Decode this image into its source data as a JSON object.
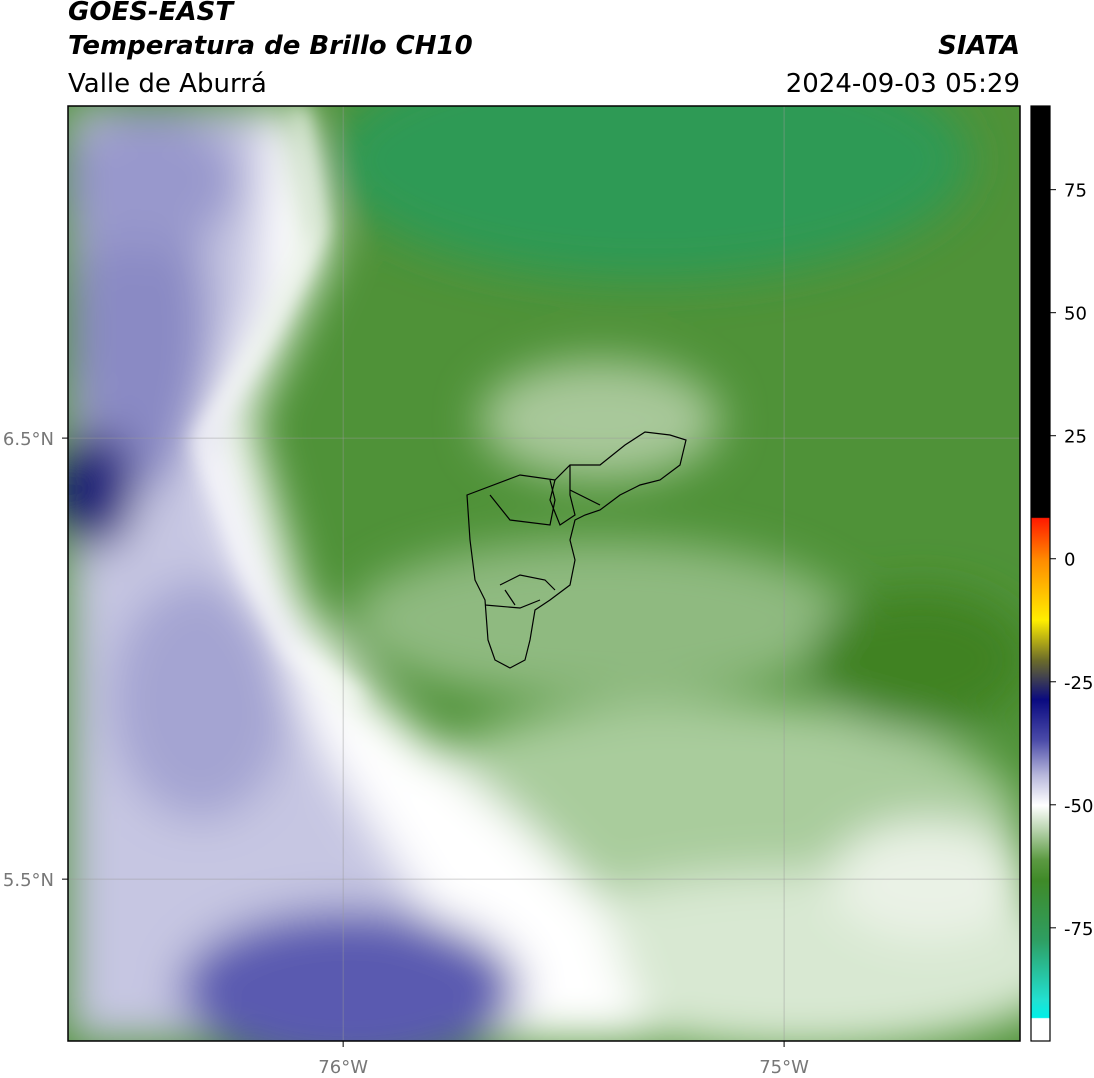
{
  "header": {
    "title": "GOES-EAST",
    "subtitle": "Temperatura de Brillo CH10",
    "region": "Valle de Aburrá",
    "source": "SIATA",
    "datetime": "2024-09-03 05:29"
  },
  "map": {
    "xlim": [
      -76.624,
      -74.465
    ],
    "ylim": [
      5.133,
      7.253
    ],
    "xticks": [
      {
        "value": -76,
        "label": "76°W"
      },
      {
        "value": -75,
        "label": "75°W"
      }
    ],
    "yticks": [
      {
        "value": 5.5,
        "label": "5.5°N"
      },
      {
        "value": 6.5,
        "label": "6.5°N"
      }
    ],
    "grid": true
  },
  "colorbar": {
    "lim": [
      -98,
      92
    ],
    "ticks": [
      -75,
      -50,
      -25,
      0,
      25,
      50,
      75
    ]
  }
}
